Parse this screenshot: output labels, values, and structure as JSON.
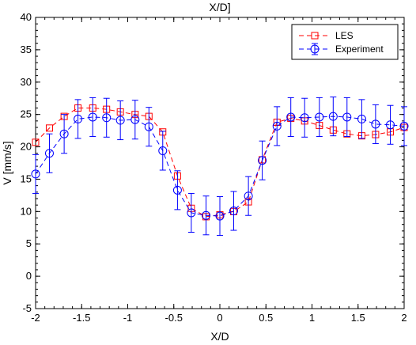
{
  "chart_data": {
    "type": "line",
    "title": "X/D]",
    "xlabel": "X/D",
    "ylabel": "V [mm/s]",
    "xlim": [
      -2,
      2
    ],
    "ylim": [
      -5,
      40
    ],
    "xticks": [
      -2,
      -1.5,
      -1,
      -0.5,
      0,
      0.5,
      1,
      1.5,
      2
    ],
    "xtick_labels": [
      "-2",
      "-1.5",
      "-1",
      "-0.5",
      "0",
      "0.5",
      "1",
      "1.5",
      "2"
    ],
    "yticks": [
      -5,
      0,
      5,
      10,
      15,
      20,
      25,
      30,
      35,
      40
    ],
    "ytick_labels": [
      "-5",
      "0",
      "5",
      "10",
      "15",
      "20",
      "25",
      "30",
      "35",
      "40"
    ],
    "grid": false,
    "legend_position": "top-right",
    "series": [
      {
        "name": "LES",
        "color": "#ff0000",
        "marker": "square",
        "line_style": "dashed",
        "x": [
          -2.0,
          -1.85,
          -1.69,
          -1.54,
          -1.38,
          -1.23,
          -1.08,
          -0.92,
          -0.77,
          -0.62,
          -0.46,
          -0.31,
          -0.15,
          0.0,
          0.15,
          0.31,
          0.46,
          0.62,
          0.77,
          0.92,
          1.08,
          1.23,
          1.38,
          1.54,
          1.69,
          1.85,
          2.0
        ],
        "y": [
          20.7,
          22.9,
          24.7,
          26.0,
          26.0,
          25.8,
          25.4,
          25.0,
          24.7,
          22.3,
          15.5,
          10.5,
          9.2,
          9.5,
          10.0,
          11.5,
          18.0,
          23.8,
          24.4,
          24.0,
          23.3,
          22.6,
          22.0,
          21.7,
          21.9,
          22.3,
          23.0
        ]
      },
      {
        "name": "Experiment",
        "color": "#0000ff",
        "marker": "circle",
        "line_style": "dashed",
        "error_bar": 3.0,
        "x": [
          -2.0,
          -1.85,
          -1.69,
          -1.54,
          -1.38,
          -1.23,
          -1.08,
          -0.92,
          -0.77,
          -0.62,
          -0.46,
          -0.31,
          -0.15,
          0.0,
          0.15,
          0.31,
          0.46,
          0.62,
          0.77,
          0.92,
          1.08,
          1.23,
          1.38,
          1.54,
          1.69,
          1.85,
          2.0
        ],
        "y": [
          15.8,
          19.0,
          22.0,
          24.3,
          24.6,
          24.5,
          24.1,
          24.2,
          23.1,
          19.4,
          13.3,
          9.8,
          9.4,
          9.3,
          10.1,
          12.4,
          17.9,
          23.2,
          24.6,
          24.5,
          24.6,
          24.7,
          24.6,
          24.3,
          23.5,
          23.4,
          23.2
        ]
      }
    ]
  }
}
